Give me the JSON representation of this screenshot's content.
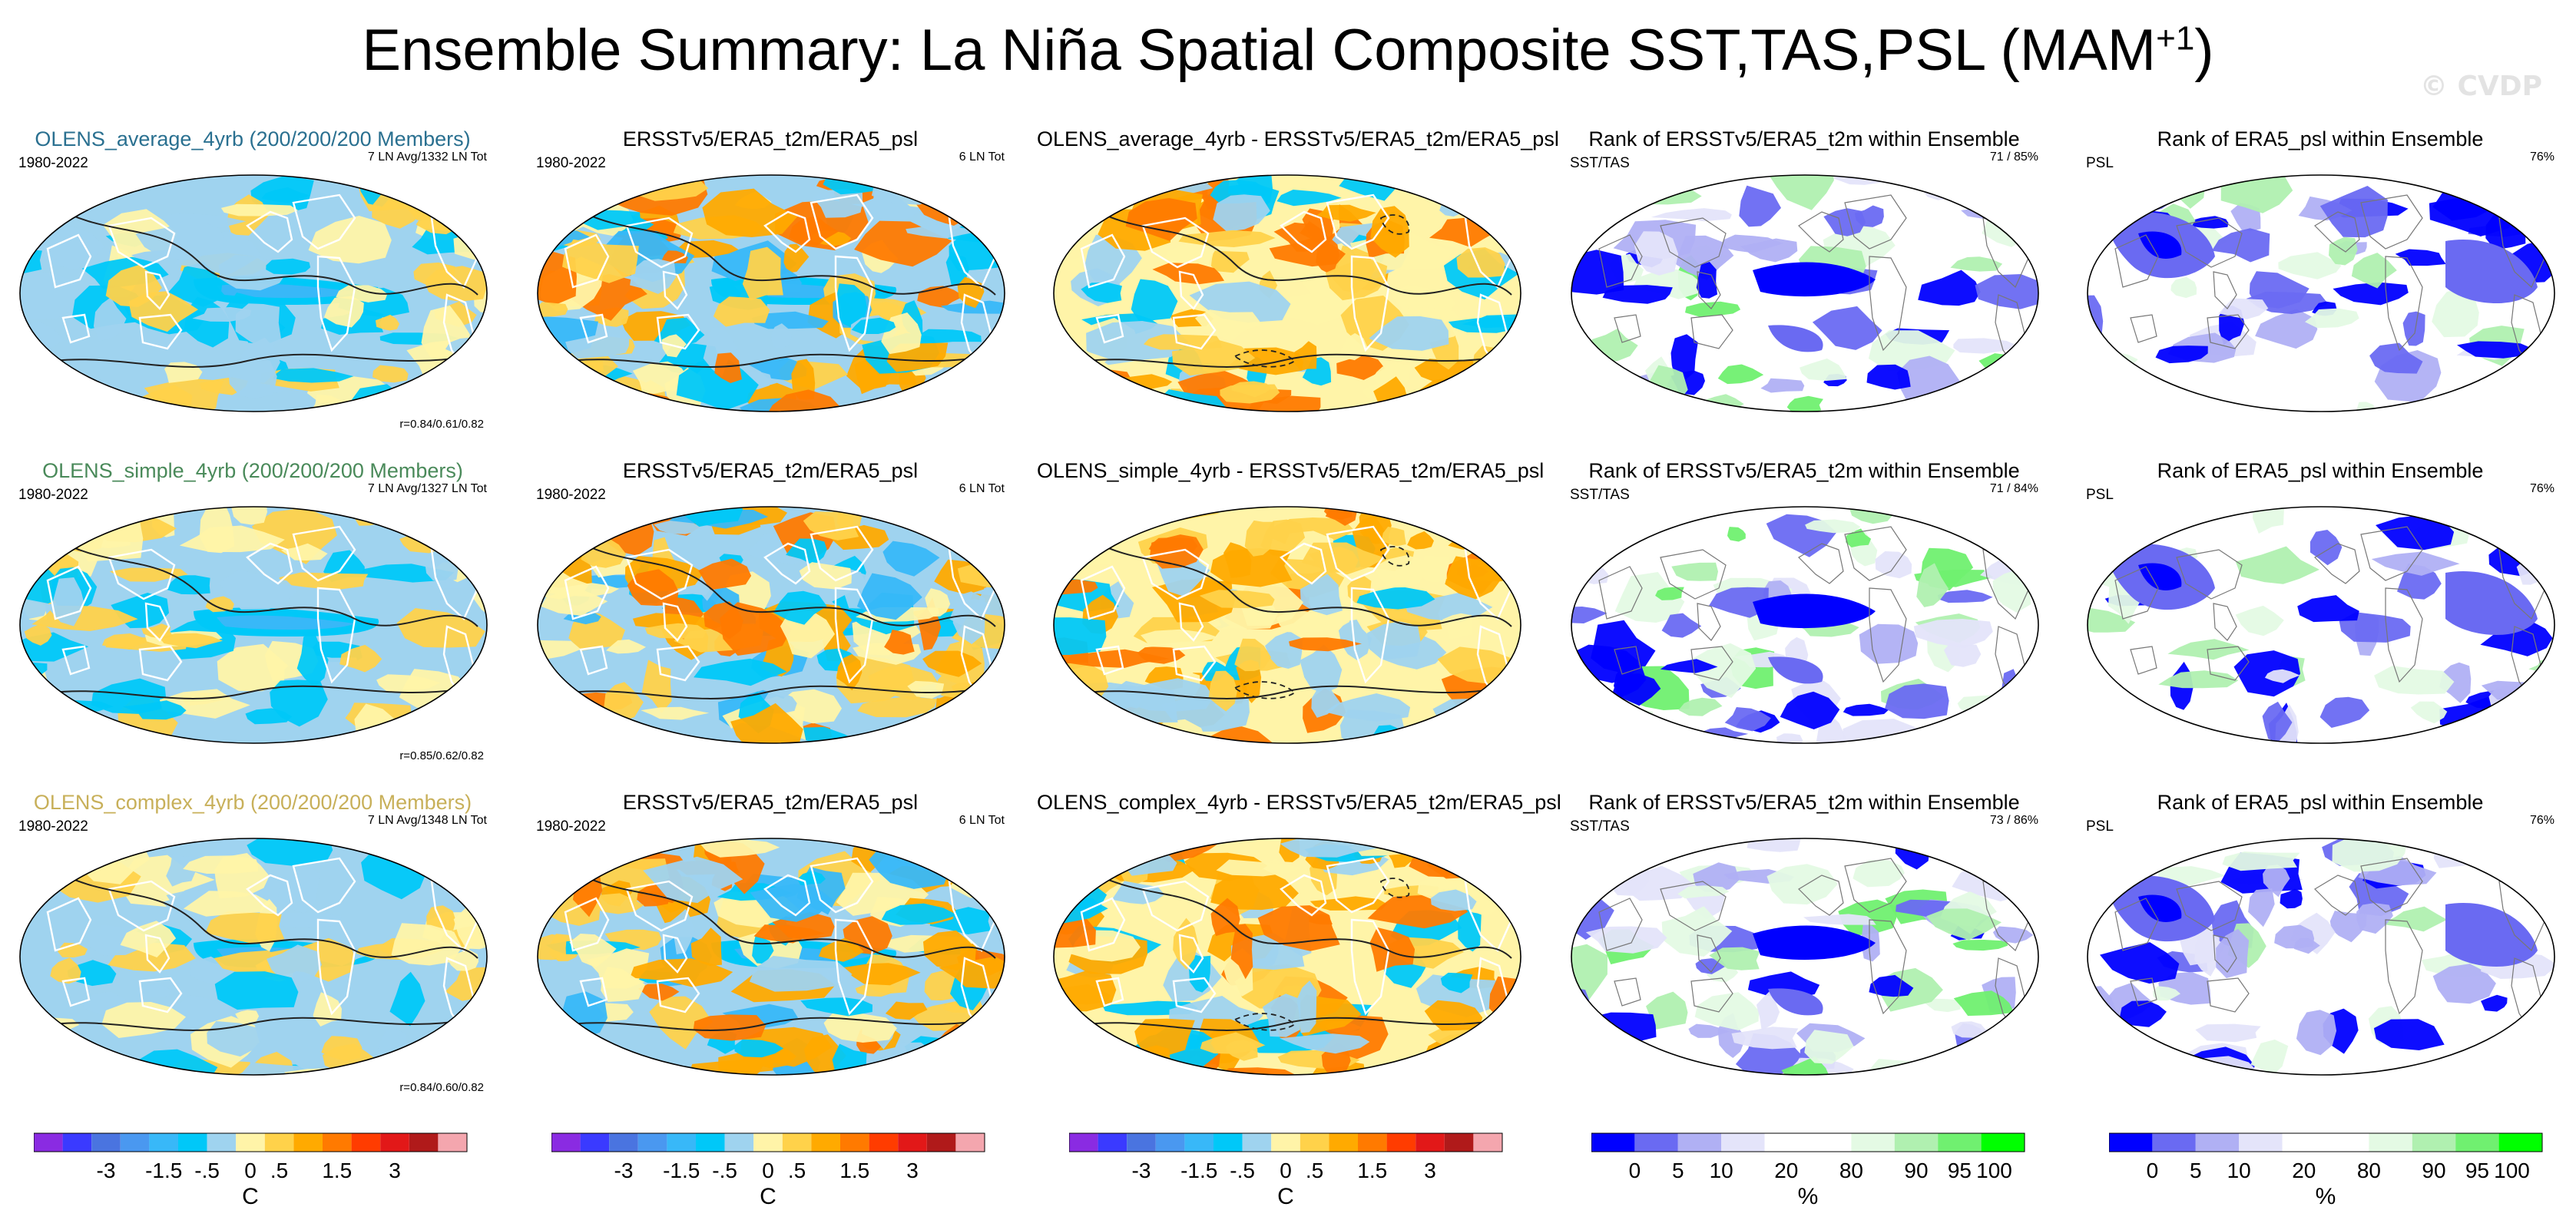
{
  "chart_data": {
    "type": "heatmap",
    "title": "Ensemble Summary: La Niña Spatial Composite SST,TAS,PSL (MAM",
    "title_superscript": "+1",
    "title_close": ")",
    "watermark": "© CVDP",
    "rows": [
      {
        "panels": [
          {
            "kind": "model",
            "title": "OLENS_average_4yrb (200/200/200 Members)",
            "title_color": "#2a7090",
            "left": "1980-2022",
            "right": "7 LN Avg/1332 LN Tot",
            "corr": "r=0.84/0.61/0.82"
          },
          {
            "kind": "obs",
            "title": "ERSSTv5/ERA5_t2m/ERA5_psl",
            "left": "1980-2022",
            "right": "6 LN Tot"
          },
          {
            "kind": "diff",
            "title": "OLENS_average_4yrb - ERSSTv5/ERA5_t2m/ERA5_psl"
          },
          {
            "kind": "rank1",
            "title": "Rank of ERSSTv5/ERA5_t2m within Ensemble",
            "left": "SST/TAS",
            "right": "71 /  85%"
          },
          {
            "kind": "rank2",
            "title": "Rank of ERA5_psl within Ensemble",
            "left": "PSL",
            "right": "76%"
          }
        ]
      },
      {
        "panels": [
          {
            "kind": "model",
            "title": "OLENS_simple_4yrb (200/200/200 Members)",
            "title_color": "#4a8a5a",
            "left": "1980-2022",
            "right": "7 LN Avg/1327 LN Tot",
            "corr": "r=0.85/0.62/0.82"
          },
          {
            "kind": "obs",
            "title": "ERSSTv5/ERA5_t2m/ERA5_psl",
            "left": "1980-2022",
            "right": "6 LN Tot"
          },
          {
            "kind": "diff",
            "title": "OLENS_simple_4yrb - ERSSTv5/ERA5_t2m/ERA5_psl"
          },
          {
            "kind": "rank1",
            "title": "Rank of ERSSTv5/ERA5_t2m within Ensemble",
            "left": "SST/TAS",
            "right": "71 /  84%"
          },
          {
            "kind": "rank2",
            "title": "Rank of ERA5_psl within Ensemble",
            "left": "PSL",
            "right": "76%"
          }
        ]
      },
      {
        "panels": [
          {
            "kind": "model",
            "title": "OLENS_complex_4yrb (200/200/200 Members)",
            "title_color": "#c8b05a",
            "left": "1980-2022",
            "right": "7 LN Avg/1348 LN Tot",
            "corr": "r=0.84/0.60/0.82"
          },
          {
            "kind": "obs",
            "title": "ERSSTv5/ERA5_t2m/ERA5_psl",
            "left": "1980-2022",
            "right": "6 LN Tot"
          },
          {
            "kind": "diff",
            "title": "OLENS_complex_4yrb - ERSSTv5/ERA5_t2m/ERA5_psl"
          },
          {
            "kind": "rank1",
            "title": "Rank of ERSSTv5/ERA5_t2m within Ensemble",
            "left": "SST/TAS",
            "right": "73 /  86%"
          },
          {
            "kind": "rank2",
            "title": "Rank of ERA5_psl within Ensemble",
            "left": "PSL",
            "right": "76%"
          }
        ]
      }
    ],
    "colorbar_temp": {
      "colors": [
        "#8a2be2",
        "#3a3aff",
        "#4a74e0",
        "#4a98f0",
        "#38b8f8",
        "#00c8f8",
        "#9fd3ef",
        "#fff4a8",
        "#ffd24a",
        "#ffaa00",
        "#ff7a00",
        "#ff3c00",
        "#e21818",
        "#b01a1a",
        "#f4a6ae"
      ],
      "labels": [
        "-3",
        "-1.5",
        "-.5",
        "0",
        ".5",
        "1.5",
        "3"
      ],
      "unit": "C"
    },
    "colorbar_rank": {
      "colors": [
        "#0000ff",
        "#6a6af2",
        "#b0b0f4",
        "#e4e4fa",
        "#ffffff",
        "#ffffff",
        "#e4fae4",
        "#b0f0b0",
        "#70f070",
        "#00ff00"
      ],
      "labels": [
        "0",
        "5",
        "10",
        "20",
        "80",
        "90",
        "95",
        "100"
      ],
      "unit": "%"
    }
  }
}
